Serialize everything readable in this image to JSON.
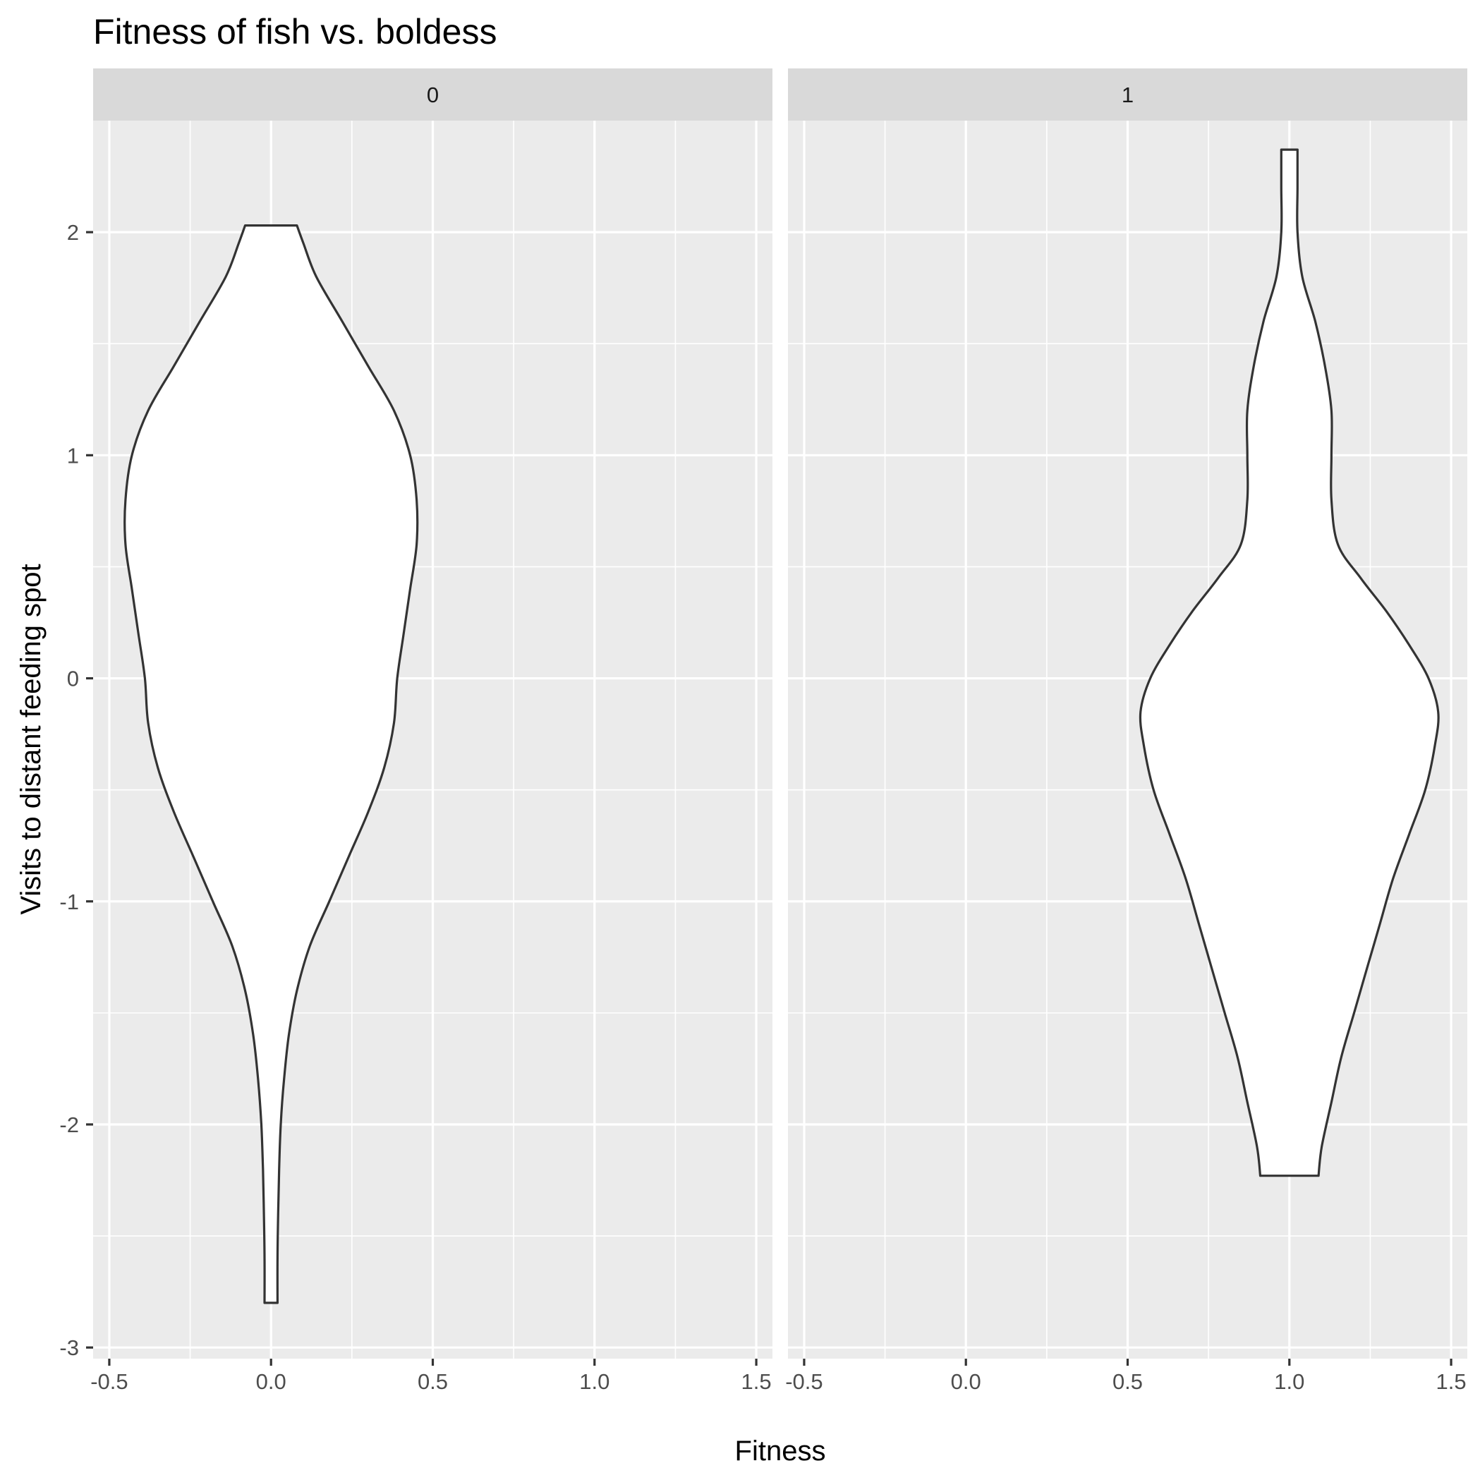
{
  "chart_data": {
    "type": "violin",
    "title": "Fitness of fish vs. boldess",
    "xlabel": "Fitness",
    "ylabel": "Visits to distant feeding spot",
    "xlim": [
      -0.55,
      1.55
    ],
    "ylim": [
      -3.05,
      2.5
    ],
    "x_ticks": [
      "-0.5",
      "0.0",
      "0.5",
      "1.0",
      "1.5"
    ],
    "x_tick_values": [
      -0.5,
      0.0,
      0.5,
      1.0,
      1.5
    ],
    "y_ticks": [
      "-3",
      "-2",
      "-1",
      "0",
      "1",
      "2"
    ],
    "y_tick_values": [
      -3,
      -2,
      -1,
      0,
      1,
      2
    ],
    "grid": true,
    "panels": [
      {
        "facet_label": "0",
        "x_center": 0,
        "y_min": -2.8,
        "y_max": 2.03,
        "profile": [
          [
            -2.8,
            0.02
          ],
          [
            -2.6,
            0.02
          ],
          [
            -2.4,
            0.022
          ],
          [
            -2.2,
            0.025
          ],
          [
            -2.0,
            0.03
          ],
          [
            -1.8,
            0.04
          ],
          [
            -1.6,
            0.055
          ],
          [
            -1.4,
            0.08
          ],
          [
            -1.2,
            0.12
          ],
          [
            -1.0,
            0.18
          ],
          [
            -0.8,
            0.24
          ],
          [
            -0.6,
            0.3
          ],
          [
            -0.4,
            0.35
          ],
          [
            -0.2,
            0.38
          ],
          [
            0.0,
            0.39
          ],
          [
            0.2,
            0.41
          ],
          [
            0.4,
            0.43
          ],
          [
            0.6,
            0.45
          ],
          [
            0.8,
            0.45
          ],
          [
            1.0,
            0.43
          ],
          [
            1.2,
            0.38
          ],
          [
            1.4,
            0.3
          ],
          [
            1.6,
            0.22
          ],
          [
            1.8,
            0.14
          ],
          [
            1.95,
            0.1
          ],
          [
            2.03,
            0.08
          ]
        ]
      },
      {
        "facet_label": "1",
        "x_center": 1,
        "y_min": -2.23,
        "y_max": 2.37,
        "profile": [
          [
            -2.23,
            0.09
          ],
          [
            -2.1,
            0.1
          ],
          [
            -1.9,
            0.13
          ],
          [
            -1.7,
            0.16
          ],
          [
            -1.5,
            0.2
          ],
          [
            -1.3,
            0.24
          ],
          [
            -1.1,
            0.28
          ],
          [
            -0.9,
            0.32
          ],
          [
            -0.7,
            0.37
          ],
          [
            -0.5,
            0.42
          ],
          [
            -0.3,
            0.45
          ],
          [
            -0.15,
            0.46
          ],
          [
            0.0,
            0.43
          ],
          [
            0.15,
            0.37
          ],
          [
            0.3,
            0.3
          ],
          [
            0.45,
            0.22
          ],
          [
            0.6,
            0.15
          ],
          [
            0.8,
            0.13
          ],
          [
            1.0,
            0.13
          ],
          [
            1.2,
            0.13
          ],
          [
            1.4,
            0.11
          ],
          [
            1.6,
            0.08
          ],
          [
            1.8,
            0.04
          ],
          [
            2.0,
            0.025
          ],
          [
            2.2,
            0.025
          ],
          [
            2.37,
            0.025
          ]
        ]
      }
    ]
  }
}
